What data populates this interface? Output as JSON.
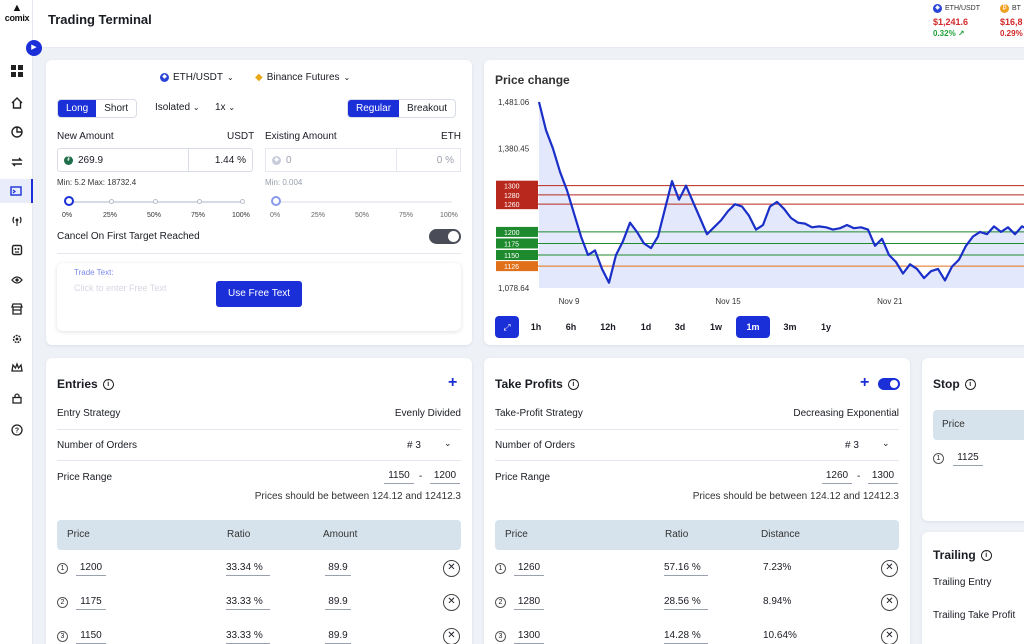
{
  "app": {
    "logo_text": "comix",
    "title": "Trading Terminal"
  },
  "sidebar": {
    "items": [
      "dashboard-icon",
      "home-icon",
      "pie-chart-icon",
      "swap-icon",
      "terminal-icon",
      "signal-icon",
      "bot-icon",
      "eye-icon",
      "store-icon",
      "gear-icon",
      "crown-icon",
      "lock-icon",
      "help-icon"
    ],
    "active_index": 4
  },
  "tickers": [
    {
      "symbol": "ETH/USDT",
      "price": "$1,241.6",
      "change": "0.32% ↗",
      "coin_color": "#2a45d6",
      "coin_glyph": "◆",
      "direction": "up"
    },
    {
      "symbol": "BT",
      "price": "$16,8",
      "change": "0.29%",
      "coin_color": "#f0a020",
      "coin_glyph": "₿",
      "direction": "down"
    }
  ],
  "order": {
    "pair": "ETH/USDT",
    "exchange": "Binance Futures",
    "side_options": [
      "Long",
      "Short"
    ],
    "side_selected": "Long",
    "margin_mode": "Isolated",
    "leverage": "1x",
    "order_types": [
      "Regular",
      "Breakout"
    ],
    "order_type_selected": "Regular",
    "new_amount_label": "New Amount",
    "new_amount_currency": "USDT",
    "new_amount_value": "269.9",
    "new_amount_percent": "1.44",
    "percent_sign": "%",
    "new_amount_limits": "Min: 5.2 Max: 18732.4",
    "existing_amount_label": "Existing Amount",
    "existing_currency": "ETH",
    "existing_value": "0",
    "existing_percent": "0",
    "existing_limits": "Min: 0.004",
    "slider_ticks": [
      "0%",
      "25%",
      "50%",
      "75%",
      "100%"
    ],
    "cancel_label": "Cancel On First Target Reached",
    "trade_text_label": "Trade Text:",
    "trade_text_placeholder": "Click to enter Free Text",
    "use_free_text": "Use Free Text"
  },
  "price_chart": {
    "title": "Price change",
    "y_ticks": [
      "1,481.06",
      "1,380.45",
      "1,078.64"
    ],
    "x_ticks": [
      "Nov 9",
      "Nov 15",
      "Nov 21"
    ],
    "level_labels": [
      "1300",
      "1280",
      "1260",
      "1200",
      "1175",
      "1150",
      "1126"
    ],
    "timeframes": [
      "1h",
      "6h",
      "12h",
      "1d",
      "3d",
      "1w",
      "1m",
      "3m",
      "1y"
    ],
    "selected_timeframe": "1m"
  },
  "chart_data": {
    "type": "line",
    "title": "Price change",
    "x_ticks": [
      "Nov 9",
      "Nov 15",
      "Nov 21"
    ],
    "ylim": [
      1078.64,
      1481.06
    ],
    "series": [
      {
        "name": "",
        "values": [
          1481,
          1420,
          1380,
          1330,
          1290,
          1240,
          1190,
          1150,
          1160,
          1120,
          1090,
          1150,
          1180,
          1220,
          1200,
          1175,
          1165,
          1190,
          1250,
          1310,
          1270,
          1300,
          1265,
          1230,
          1195,
          1210,
          1225,
          1245,
          1260,
          1255,
          1235,
          1205,
          1215,
          1255,
          1265,
          1250,
          1230,
          1220,
          1218,
          1210,
          1212,
          1210,
          1205,
          1208,
          1215,
          1208,
          1210,
          1205,
          1170,
          1185,
          1150,
          1135,
          1110,
          1130,
          1120,
          1100,
          1115,
          1120,
          1095,
          1125,
          1140,
          1170,
          1190,
          1200,
          1195,
          1212,
          1200,
          1210,
          1195,
          1212,
          1205
        ]
      }
    ],
    "levels": [
      {
        "label": "1300",
        "value": 1300,
        "color": "#b8281c"
      },
      {
        "label": "1280",
        "value": 1280,
        "color": "#b8281c"
      },
      {
        "label": "1260",
        "value": 1260,
        "color": "#b8281c"
      },
      {
        "label": "1200",
        "value": 1200,
        "color": "#1e8a2e"
      },
      {
        "label": "1175",
        "value": 1175,
        "color": "#1e8a2e"
      },
      {
        "label": "1150",
        "value": 1150,
        "color": "#1e8a2e"
      },
      {
        "label": "1126",
        "value": 1126,
        "color": "#e0701a"
      }
    ]
  },
  "entries": {
    "title": "Entries",
    "strategy_label": "Entry Strategy",
    "strategy_value": "Evenly Divided",
    "orders_label": "Number of Orders",
    "orders_value": "# 3",
    "range_label": "Price Range",
    "range_from": "1150",
    "range_sep": "-",
    "range_to": "1200",
    "hint": "Prices should be between 124.12 and 12412.3",
    "columns": [
      "Price",
      "Ratio",
      "Amount"
    ],
    "rows": [
      {
        "idx": "1",
        "price": "1200",
        "ratio": "33.34",
        "amount": "89.9"
      },
      {
        "idx": "2",
        "price": "1175",
        "ratio": "33.33",
        "amount": "89.9"
      },
      {
        "idx": "3",
        "price": "1150",
        "ratio": "33.33",
        "amount": "89.9"
      }
    ]
  },
  "take_profits": {
    "title": "Take Profits",
    "strategy_label": "Take-Profit Strategy",
    "strategy_value": "Decreasing Exponential",
    "orders_label": "Number of Orders",
    "orders_value": "# 3",
    "range_label": "Price Range",
    "range_from": "1260",
    "range_sep": "-",
    "range_to": "1300",
    "hint": "Prices should be between 124.12 and 12412.3",
    "columns": [
      "Price",
      "Ratio",
      "Distance"
    ],
    "rows": [
      {
        "idx": "1",
        "price": "1260",
        "ratio": "57.16",
        "distance": "7.23%"
      },
      {
        "idx": "2",
        "price": "1280",
        "ratio": "28.56",
        "distance": "8.94%"
      },
      {
        "idx": "3",
        "price": "1300",
        "ratio": "14.28",
        "distance": "10.64%"
      }
    ]
  },
  "stop": {
    "title": "Stop",
    "price_header": "Price",
    "idx": "1",
    "price": "1125"
  },
  "trailing": {
    "title": "Trailing",
    "entry_label": "Trailing Entry",
    "take_profit_label": "Trailing Take Profit"
  },
  "colors": {
    "accent": "#1a2fd8",
    "price_up": "#22a03c",
    "price_down": "#d22828",
    "line": "#1a2fc8",
    "fill": "#dde2fb"
  }
}
